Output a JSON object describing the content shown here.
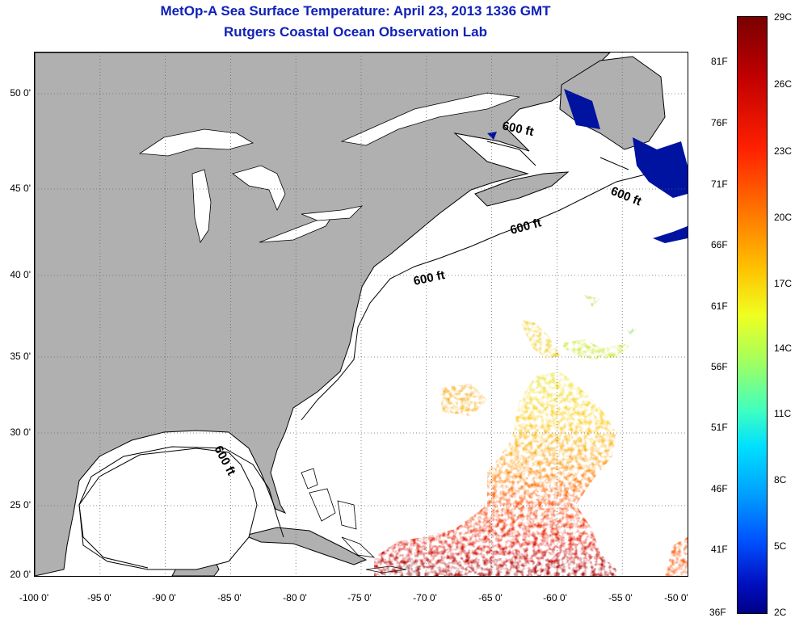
{
  "title": "MetOp-A Sea Surface Temperature:  April 23, 2013 1336 GMT",
  "subtitle": "Rutgers Coastal Ocean Observation Lab",
  "y_ticks": [
    "50 0'",
    "45 0'",
    "40 0'",
    "35 0'",
    "30 0'",
    "25 0'",
    "20 0'"
  ],
  "x_ticks": [
    "-100 0'",
    "-95 0'",
    "-90 0'",
    "-85 0'",
    "-80 0'",
    "-75 0'",
    "-70 0'",
    "-65 0'",
    "-60 0'",
    "-55 0'",
    "-50 0'"
  ],
  "contour_labels": [
    "600 ft",
    "600 ft",
    "600 ft",
    "600 ft",
    "600 ft"
  ],
  "colorbar": {
    "celsius_labels": [
      "29C",
      "26C",
      "23C",
      "20C",
      "17C",
      "14C",
      "11C",
      "8C",
      "5C",
      "2C"
    ],
    "fahrenheit_labels": [
      "81F",
      "76F",
      "71F",
      "66F",
      "61F",
      "56F",
      "51F",
      "46F",
      "41F",
      "36F"
    ]
  },
  "colors": {
    "land": "#b0b0b0",
    "title": "#1020b8",
    "grid": "#666666"
  }
}
